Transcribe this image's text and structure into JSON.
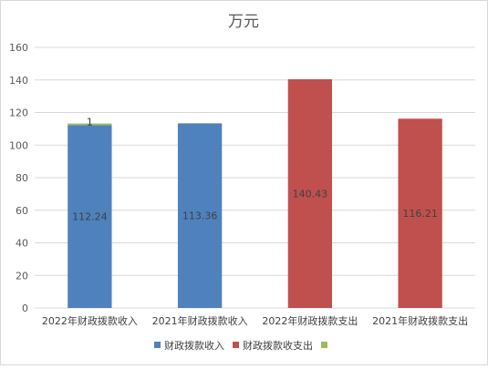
{
  "chart_data": {
    "type": "bar",
    "title": "万元",
    "categories": [
      "2022年财政拨款收入",
      "2021年财政拨款收入",
      "2022年财政拨款支出",
      "2021年财政拨款支出"
    ],
    "series": [
      {
        "name": "财政拨款收入",
        "color": "#4f81bd",
        "values": [
          112.24,
          113.36,
          null,
          null
        ],
        "labels": [
          "112.24",
          "113.36",
          "",
          ""
        ]
      },
      {
        "name": "财政拨款收支出",
        "color": "#c0504d",
        "values": [
          null,
          null,
          140.43,
          116.21
        ],
        "labels": [
          "",
          "",
          "140.43",
          "116.21"
        ]
      },
      {
        "name": "",
        "color": "#9bbb59",
        "values": [
          1,
          null,
          null,
          null
        ],
        "labels": [
          "1",
          "",
          "",
          ""
        ]
      }
    ],
    "stacked": true,
    "ylim": [
      0,
      160
    ],
    "yticks": [
      0,
      20,
      40,
      60,
      80,
      100,
      120,
      140,
      160
    ],
    "grid": true,
    "legend_position": "bottom"
  }
}
